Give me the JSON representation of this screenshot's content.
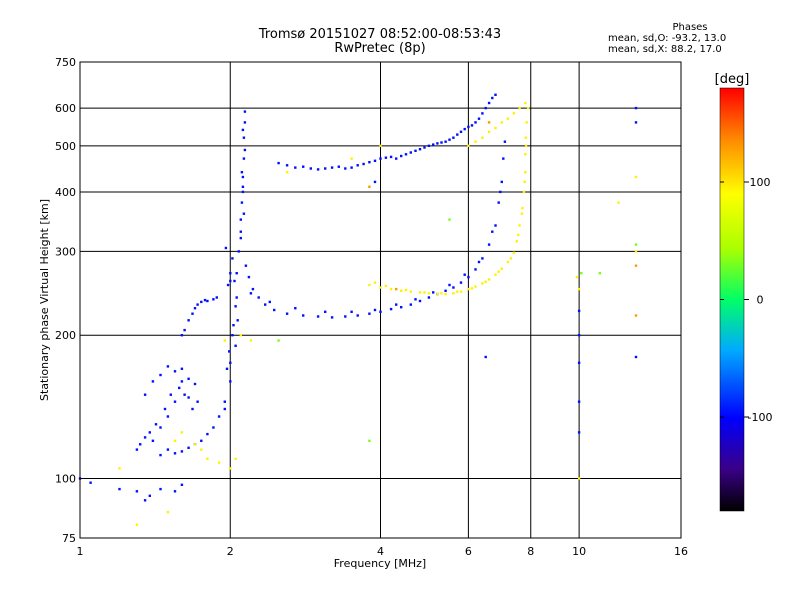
{
  "header": {
    "title_line1": "Tromsø 20151027 08:52:00-08:53:43",
    "title_line2": "RwPretec (8p)"
  },
  "phases": {
    "title": "Phases",
    "stat_o": "mean, sd,O:  -93.2, 13.0",
    "stat_x": "mean, sd,X:   88.2, 17.0"
  },
  "colorbar": {
    "unit": "[deg]",
    "ticks": [
      {
        "label": "100",
        "value": 100
      },
      {
        "label": "0",
        "value": 0
      },
      {
        "label": "-100",
        "value": -100
      }
    ],
    "range": [
      -180,
      180
    ]
  },
  "chart_data": {
    "type": "scatter",
    "xlabel": "Frequency [MHz]",
    "ylabel": "Stationary phase Virtual Height [km]",
    "xscale": "log",
    "yscale": "log",
    "xlim": [
      1,
      16
    ],
    "ylim": [
      75,
      750
    ],
    "xticks": [
      {
        "label": "1",
        "value": 1
      },
      {
        "label": "2",
        "value": 2
      },
      {
        "label": "4",
        "value": 4
      },
      {
        "label": "6",
        "value": 6
      },
      {
        "label": "8",
        "value": 8
      },
      {
        "label": "10",
        "value": 10
      },
      {
        "label": "16",
        "value": 16
      }
    ],
    "yticks": [
      {
        "label": "75",
        "value": 75
      },
      {
        "label": "100",
        "value": 100
      },
      {
        "label": "200",
        "value": 200
      },
      {
        "label": "300",
        "value": 300
      },
      {
        "label": "400",
        "value": 400
      },
      {
        "label": "500",
        "value": 500
      },
      {
        "label": "600",
        "value": 600
      },
      {
        "label": "750",
        "value": 750
      }
    ],
    "grid": true,
    "color_scale": "phase-deg",
    "series": [
      {
        "mode": "O",
        "phase": -95,
        "points": [
          [
            1.0,
            100
          ],
          [
            1.05,
            98
          ],
          [
            1.2,
            95
          ],
          [
            1.3,
            94
          ],
          [
            1.35,
            90
          ],
          [
            1.38,
            92
          ],
          [
            1.45,
            95
          ],
          [
            1.55,
            94
          ],
          [
            1.6,
            97
          ],
          [
            1.3,
            115
          ],
          [
            1.32,
            118
          ],
          [
            1.35,
            122
          ],
          [
            1.38,
            125
          ],
          [
            1.4,
            120
          ],
          [
            1.42,
            130
          ],
          [
            1.45,
            128
          ],
          [
            1.48,
            140
          ],
          [
            1.5,
            135
          ],
          [
            1.52,
            150
          ],
          [
            1.55,
            145
          ],
          [
            1.58,
            155
          ],
          [
            1.6,
            160
          ],
          [
            1.62,
            150
          ],
          [
            1.65,
            148
          ],
          [
            1.68,
            140
          ],
          [
            1.7,
            158
          ],
          [
            1.72,
            145
          ],
          [
            1.35,
            150
          ],
          [
            1.4,
            160
          ],
          [
            1.45,
            165
          ],
          [
            1.5,
            172
          ],
          [
            1.55,
            168
          ],
          [
            1.6,
            170
          ],
          [
            1.65,
            162
          ],
          [
            1.45,
            112
          ],
          [
            1.5,
            115
          ],
          [
            1.55,
            113
          ],
          [
            1.6,
            114
          ],
          [
            1.65,
            116
          ],
          [
            1.7,
            118
          ],
          [
            1.75,
            120
          ],
          [
            1.8,
            124
          ],
          [
            1.85,
            128
          ],
          [
            1.9,
            135
          ],
          [
            1.95,
            145
          ],
          [
            2.0,
            160
          ],
          [
            2.0,
            175
          ],
          [
            2.05,
            190
          ],
          [
            2.02,
            200
          ],
          [
            2.07,
            215
          ],
          [
            2.05,
            230
          ],
          [
            1.95,
            140
          ],
          [
            1.97,
            170
          ],
          [
            1.99,
            185
          ],
          [
            2.03,
            210
          ],
          [
            2.06,
            240
          ],
          [
            1.98,
            255
          ],
          [
            2.0,
            270
          ],
          [
            2.02,
            290
          ],
          [
            1.96,
            305
          ],
          [
            2.04,
            260
          ],
          [
            1.6,
            200
          ],
          [
            1.62,
            205
          ],
          [
            1.65,
            215
          ],
          [
            1.68,
            222
          ],
          [
            1.7,
            228
          ],
          [
            1.72,
            232
          ],
          [
            1.75,
            235
          ],
          [
            1.78,
            237
          ],
          [
            1.8,
            236
          ],
          [
            1.85,
            238
          ],
          [
            1.88,
            240
          ],
          [
            2.06,
            270
          ],
          [
            2.08,
            300
          ],
          [
            2.1,
            320
          ],
          [
            2.1,
            350
          ],
          [
            2.11,
            380
          ],
          [
            2.12,
            400
          ],
          [
            2.12,
            430
          ],
          [
            2.13,
            470
          ],
          [
            2.13,
            520
          ],
          [
            2.14,
            560
          ],
          [
            2.14,
            590
          ],
          [
            2.1,
            330
          ],
          [
            2.13,
            360
          ],
          [
            2.12,
            410
          ],
          [
            2.11,
            440
          ],
          [
            2.14,
            490
          ],
          [
            2.12,
            540
          ],
          [
            2.15,
            280
          ],
          [
            2.18,
            265
          ],
          [
            2.22,
            250
          ],
          [
            2.28,
            240
          ],
          [
            2.35,
            232
          ],
          [
            2.45,
            226
          ],
          [
            2.6,
            222
          ],
          [
            2.8,
            220
          ],
          [
            3.0,
            219
          ],
          [
            3.2,
            218
          ],
          [
            3.4,
            219
          ],
          [
            3.6,
            220
          ],
          [
            3.8,
            222
          ],
          [
            4.0,
            224
          ],
          [
            4.2,
            227
          ],
          [
            4.4,
            229
          ],
          [
            4.6,
            232
          ],
          [
            4.8,
            236
          ],
          [
            5.0,
            240
          ],
          [
            5.2,
            244
          ],
          [
            5.4,
            248
          ],
          [
            5.6,
            252
          ],
          [
            5.8,
            258
          ],
          [
            6.0,
            265
          ],
          [
            6.2,
            275
          ],
          [
            6.4,
            290
          ],
          [
            6.6,
            310
          ],
          [
            6.8,
            340
          ],
          [
            6.9,
            380
          ],
          [
            7.0,
            420
          ],
          [
            7.05,
            470
          ],
          [
            7.1,
            510
          ],
          [
            2.2,
            245
          ],
          [
            2.4,
            235
          ],
          [
            2.7,
            228
          ],
          [
            3.1,
            224
          ],
          [
            3.5,
            224
          ],
          [
            3.9,
            226
          ],
          [
            4.3,
            232
          ],
          [
            4.7,
            238
          ],
          [
            5.1,
            246
          ],
          [
            5.5,
            255
          ],
          [
            5.9,
            268
          ],
          [
            6.3,
            285
          ],
          [
            6.7,
            330
          ],
          [
            6.95,
            400
          ],
          [
            2.5,
            460
          ],
          [
            2.6,
            455
          ],
          [
            2.7,
            450
          ],
          [
            2.8,
            452
          ],
          [
            2.9,
            448
          ],
          [
            3.0,
            446
          ],
          [
            3.1,
            448
          ],
          [
            3.2,
            450
          ],
          [
            3.3,
            452
          ],
          [
            3.4,
            448
          ],
          [
            3.5,
            450
          ],
          [
            3.6,
            455
          ],
          [
            3.7,
            458
          ],
          [
            3.8,
            462
          ],
          [
            3.9,
            465
          ],
          [
            4.0,
            470
          ],
          [
            4.1,
            472
          ],
          [
            4.2,
            474
          ],
          [
            4.3,
            470
          ],
          [
            4.4,
            476
          ],
          [
            4.5,
            480
          ],
          [
            4.6,
            484
          ],
          [
            4.7,
            488
          ],
          [
            4.8,
            492
          ],
          [
            4.9,
            496
          ],
          [
            5.0,
            500
          ],
          [
            5.1,
            503
          ],
          [
            5.2,
            506
          ],
          [
            5.3,
            508
          ],
          [
            5.4,
            510
          ],
          [
            5.5,
            515
          ],
          [
            5.6,
            520
          ],
          [
            5.7,
            528
          ],
          [
            5.8,
            535
          ],
          [
            5.9,
            542
          ],
          [
            6.0,
            548
          ],
          [
            6.1,
            552
          ],
          [
            6.2,
            560
          ],
          [
            6.3,
            570
          ],
          [
            6.4,
            585
          ],
          [
            6.5,
            600
          ],
          [
            6.6,
            615
          ],
          [
            6.7,
            630
          ],
          [
            6.8,
            640
          ],
          [
            10.0,
            125
          ],
          [
            10.0,
            145
          ],
          [
            10.0,
            175
          ],
          [
            10.0,
            200
          ],
          [
            10.0,
            225
          ],
          [
            13.0,
            560
          ],
          [
            13.0,
            600
          ],
          [
            13.0,
            180
          ],
          [
            6.5,
            180
          ],
          [
            3.9,
            420
          ],
          [
            2.0,
            260
          ]
        ]
      },
      {
        "mode": "X",
        "phase": 95,
        "points": [
          [
            3.8,
            255
          ],
          [
            4.0,
            252
          ],
          [
            4.2,
            250
          ],
          [
            4.4,
            248
          ],
          [
            4.6,
            247
          ],
          [
            4.8,
            246
          ],
          [
            5.0,
            245
          ],
          [
            5.2,
            244
          ],
          [
            5.4,
            244
          ],
          [
            5.6,
            245
          ],
          [
            5.8,
            247
          ],
          [
            6.0,
            250
          ],
          [
            6.2,
            253
          ],
          [
            6.4,
            257
          ],
          [
            6.6,
            262
          ],
          [
            6.8,
            268
          ],
          [
            7.0,
            276
          ],
          [
            7.2,
            285
          ],
          [
            7.4,
            298
          ],
          [
            7.5,
            315
          ],
          [
            7.6,
            340
          ],
          [
            7.7,
            370
          ],
          [
            7.75,
            400
          ],
          [
            7.8,
            440
          ],
          [
            7.8,
            480
          ],
          [
            7.82,
            520
          ],
          [
            7.85,
            560
          ],
          [
            7.9,
            600
          ],
          [
            3.9,
            258
          ],
          [
            4.1,
            254
          ],
          [
            4.5,
            249
          ],
          [
            4.9,
            246
          ],
          [
            5.3,
            245
          ],
          [
            5.7,
            247
          ],
          [
            6.1,
            251
          ],
          [
            6.5,
            259
          ],
          [
            6.9,
            272
          ],
          [
            7.3,
            290
          ],
          [
            7.55,
            325
          ],
          [
            7.68,
            360
          ],
          [
            7.78,
            420
          ],
          [
            7.83,
            500
          ],
          [
            6.0,
            500
          ],
          [
            6.2,
            510
          ],
          [
            6.4,
            520
          ],
          [
            6.6,
            535
          ],
          [
            6.8,
            545
          ],
          [
            7.0,
            560
          ],
          [
            7.2,
            570
          ],
          [
            7.4,
            585
          ],
          [
            7.6,
            600
          ],
          [
            7.8,
            615
          ],
          [
            1.55,
            120
          ],
          [
            1.6,
            125
          ],
          [
            1.7,
            118
          ],
          [
            1.75,
            115
          ],
          [
            1.8,
            110
          ],
          [
            1.9,
            108
          ],
          [
            2.0,
            105
          ],
          [
            2.05,
            110
          ],
          [
            1.95,
            195
          ],
          [
            2.1,
            200
          ],
          [
            2.2,
            195
          ],
          [
            1.3,
            80
          ],
          [
            1.5,
            85
          ],
          [
            1.2,
            105
          ],
          [
            3.5,
            470
          ],
          [
            4.0,
            500
          ],
          [
            2.6,
            440
          ],
          [
            13.0,
            430
          ],
          [
            13.0,
            300
          ],
          [
            12.0,
            380
          ],
          [
            10.0,
            100
          ],
          [
            10.0,
            250
          ],
          [
            9.9,
            265
          ]
        ]
      },
      {
        "mode": "other",
        "phase": 30,
        "points": [
          [
            5.5,
            350
          ],
          [
            3.8,
            120
          ],
          [
            11.0,
            270
          ],
          [
            10.1,
            270
          ],
          [
            13.0,
            310
          ],
          [
            2.5,
            195
          ]
        ]
      },
      {
        "mode": "other",
        "phase": 130,
        "points": [
          [
            3.8,
            410
          ],
          [
            4.3,
            250
          ],
          [
            13.0,
            220
          ],
          [
            13.0,
            280
          ],
          [
            6.6,
            560
          ]
        ]
      }
    ]
  }
}
